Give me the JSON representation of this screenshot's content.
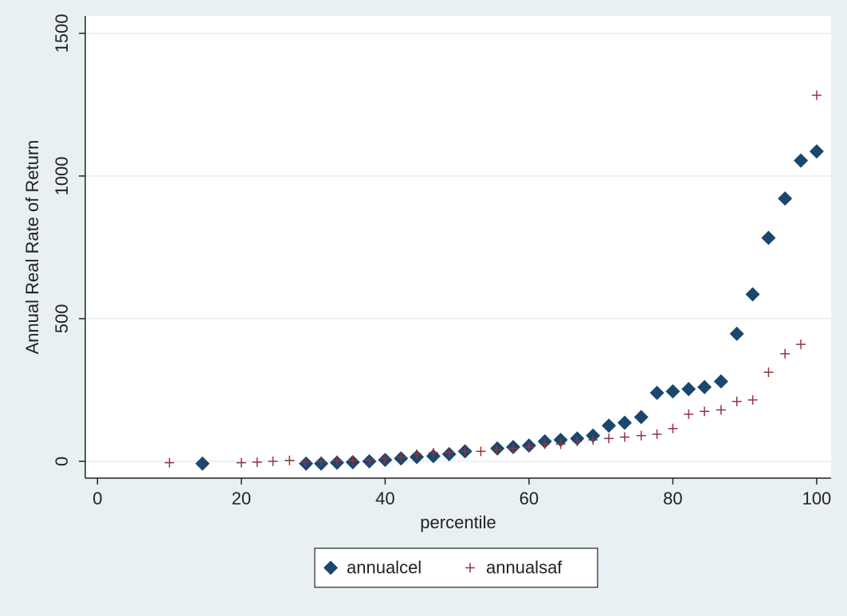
{
  "chart_data": {
    "type": "scatter",
    "x_label": "percentile",
    "y_label": "Annual Real Rate of Return",
    "xlim": [
      -1.7,
      102
    ],
    "ylim": [
      -59,
      1561
    ],
    "xticks": [
      0,
      20,
      40,
      60,
      80,
      100
    ],
    "yticks": [
      0,
      500,
      1000,
      1500
    ],
    "grid": true,
    "legend_position": "bottom",
    "series": [
      {
        "name": "annualcel",
        "color": "#1a476f",
        "marker": "diamond",
        "x": [
          14.6,
          29,
          31.1,
          33.3,
          35.5,
          37.8,
          40,
          42.2,
          44.4,
          46.7,
          48.9,
          51.1,
          55.6,
          57.8,
          60,
          62.2,
          64.4,
          66.7,
          68.9,
          71.1,
          73.3,
          75.6,
          77.8,
          80,
          82.2,
          84.4,
          86.7,
          88.9,
          91.1,
          93.3,
          95.6,
          97.8,
          100
        ],
        "values": [
          -8,
          -8,
          -8,
          -5,
          -3,
          0,
          5,
          10,
          15,
          18,
          25,
          35,
          45,
          50,
          55,
          70,
          75,
          80,
          90,
          125,
          135,
          155,
          240,
          245,
          253,
          260,
          280,
          447,
          585,
          783,
          921,
          1054,
          1086
        ]
      },
      {
        "name": "annualsaf",
        "color": "#90353b",
        "marker": "plus",
        "x": [
          10,
          20,
          22.2,
          24.4,
          26.7,
          28.9,
          31.1,
          33.3,
          35.5,
          37.8,
          40,
          42.2,
          44.4,
          46.7,
          48.9,
          51.1,
          53.3,
          55.5,
          57.8,
          60,
          62.2,
          64.4,
          66.7,
          68.9,
          71.1,
          73.3,
          75.6,
          77.8,
          80,
          82.2,
          84.4,
          86.7,
          88.9,
          91.1,
          93.3,
          95.6,
          97.8,
          100
        ],
        "values": [
          -5,
          -5,
          -3,
          0,
          3,
          -3,
          0,
          3,
          3,
          5,
          10,
          15,
          25,
          30,
          30,
          35,
          35,
          40,
          45,
          50,
          60,
          60,
          70,
          75,
          80,
          85,
          90,
          95,
          115,
          165,
          175,
          180,
          210,
          215,
          312,
          377,
          410,
          1283
        ]
      }
    ]
  }
}
